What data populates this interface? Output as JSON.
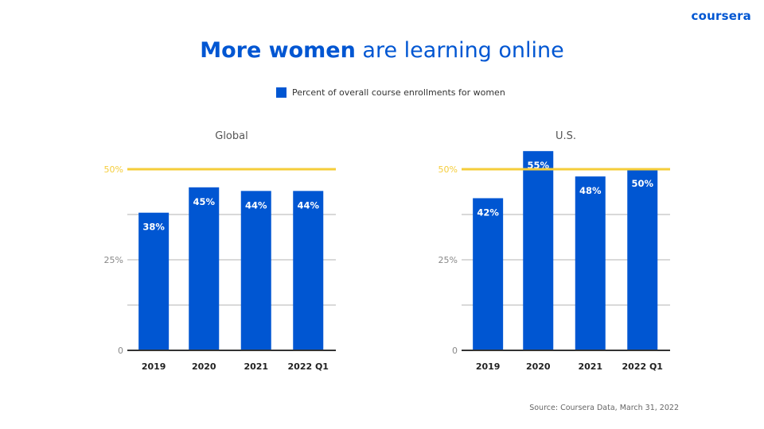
{
  "logo": "coursera",
  "title": {
    "bold": "More women",
    "rest": " are learning online"
  },
  "legend_label": "Percent of overall course enrollments for women",
  "source": "Source: Coursera Data, March 31, 2022",
  "colors": {
    "bar": "#0056d2",
    "reference_line": "#f5cd3a",
    "grid": "#d9d9d9",
    "axis": "#333333"
  },
  "chart_data": [
    {
      "type": "bar",
      "title": "Global",
      "categories": [
        "2019",
        "2020",
        "2021",
        "2022 Q1"
      ],
      "values": [
        38,
        45,
        44,
        44
      ],
      "data_labels": [
        "38%",
        "45%",
        "44%",
        "44%"
      ],
      "yticks": [
        "0",
        "25%",
        "50%"
      ],
      "ylim": [
        0,
        50
      ],
      "grid": true,
      "reference_line": 50
    },
    {
      "type": "bar",
      "title": "U.S.",
      "categories": [
        "2019",
        "2020",
        "2021",
        "2022 Q1"
      ],
      "values": [
        42,
        55,
        48,
        50
      ],
      "data_labels": [
        "42%",
        "55%",
        "48%",
        "50%"
      ],
      "yticks": [
        "0",
        "25%",
        "50%"
      ],
      "ylim": [
        0,
        50
      ],
      "grid": true,
      "reference_line": 50
    }
  ]
}
